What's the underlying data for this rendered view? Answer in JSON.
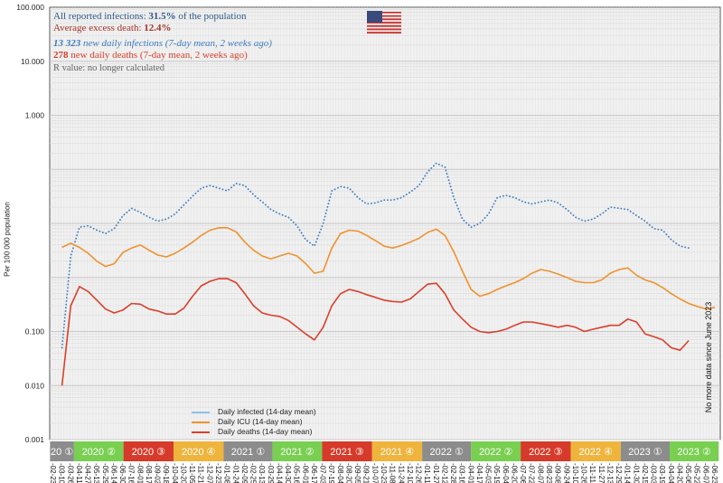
{
  "annotations": {
    "infections_prefix": "All reported infections: ",
    "infections_value": "31.5%",
    "infections_suffix": " of the population",
    "excess_prefix": "Average excess death: ",
    "excess_value": "12.4%",
    "daily_infections_value": "13 323",
    "daily_infections_suffix": " new daily infections (7-day mean, 2 weeks ago)",
    "daily_deaths_value": "278",
    "daily_deaths_suffix": " new daily deaths (7-day mean, 2 weeks ago)",
    "r_value": "R value: no longer calculated",
    "no_more_data": "No more data since June 2023"
  },
  "colors": {
    "infected": "#3d7cc0",
    "icu": "#f0922e",
    "deaths": "#d9402b",
    "q1": "#8c8c8c",
    "q2": "#78cf50",
    "q3": "#d63a2a",
    "q4": "#eeb43c",
    "plot_bg": "#f1f1f1",
    "infections_text": "#2e5a8a",
    "excess_text": "#a8352a",
    "daily_inf_text": "#3d7cc0",
    "daily_death_text": "#d9402b",
    "r_text": "#666666"
  },
  "flag_icon": "us-flag-icon",
  "chart_data": {
    "type": "line",
    "ylabel": "Per 100 000 population",
    "y_scale": "log",
    "ylim": [
      0.001,
      100000
    ],
    "y_ticks": [
      "100.000",
      "10.000",
      "1.000",
      "0.100",
      "0.010",
      "0.001"
    ],
    "y_tick_values": [
      100000,
      10000,
      1000,
      0.1,
      0.01,
      0.001
    ],
    "grid": true,
    "legend_position": "bottom-left",
    "x": [
      "2020-02-23",
      "2020-03-10",
      "2020-03-26",
      "2020-04-11",
      "2020-04-27",
      "2020-05-13",
      "2020-05-29",
      "2020-06-14",
      "2020-06-30",
      "2020-07-16",
      "2020-08-01",
      "2020-08-17",
      "2020-09-02",
      "2020-09-18",
      "2020-10-04",
      "2020-10-20",
      "2020-11-05",
      "2020-11-21",
      "2020-12-07",
      "2020-12-23",
      "2021-01-08",
      "2021-01-24",
      "2021-02-09",
      "2021-02-25",
      "2021-03-13",
      "2021-03-29",
      "2021-04-14",
      "2021-04-30",
      "2021-05-16",
      "2021-06-01",
      "2021-06-17",
      "2021-07-03",
      "2021-07-19",
      "2021-08-04",
      "2021-08-20",
      "2021-09-05",
      "2021-09-21",
      "2021-10-07",
      "2021-10-23",
      "2021-11-08",
      "2021-11-24",
      "2021-12-10",
      "2021-12-26",
      "2022-01-11",
      "2022-01-27",
      "2022-02-12",
      "2022-02-28",
      "2022-03-16",
      "2022-04-01",
      "2022-04-17",
      "2022-05-03",
      "2022-05-19",
      "2022-06-04",
      "2022-06-20",
      "2022-07-06",
      "2022-07-22",
      "2022-08-07",
      "2022-08-23",
      "2022-09-08",
      "2022-09-24",
      "2022-10-10",
      "2022-10-26",
      "2022-11-11",
      "2022-11-27",
      "2022-12-13",
      "2022-12-29",
      "2023-01-14",
      "2023-01-30",
      "2023-02-15",
      "2023-03-03",
      "2023-03-19",
      "2023-04-04",
      "2023-04-20",
      "2023-05-06",
      "2023-05-22",
      "2023-06-07",
      "2023-06-23"
    ],
    "x_tick_labels": [
      "02-23",
      "03-10",
      "03-26",
      "04-11",
      "04-27",
      "05-13",
      "05-29",
      "06-14",
      "06-30",
      "07-16",
      "08-01",
      "08-17",
      "09-02",
      "09-18",
      "10-04",
      "10-20",
      "11-05",
      "11-21",
      "12-07",
      "12-23",
      "01-08",
      "01-24",
      "02-09",
      "02-25",
      "03-13",
      "03-29",
      "04-14",
      "04-30",
      "05-16",
      "06-01",
      "06-17",
      "07-03",
      "07-19",
      "08-04",
      "08-20",
      "09-05",
      "09-21",
      "10-07",
      "10-23",
      "11-08",
      "11-24",
      "12-10",
      "12-26",
      "01-11",
      "01-27",
      "02-12",
      "02-28",
      "03-16",
      "04-01",
      "04-17",
      "05-03",
      "05-19",
      "06-04",
      "06-20",
      "07-06",
      "07-22",
      "08-07",
      "08-23",
      "09-08",
      "09-24",
      "10-10",
      "10-26",
      "11-11",
      "11-27",
      "12-13",
      "12-29",
      "01-14",
      "01-30",
      "02-15",
      "03-03",
      "03-19",
      "04-04",
      "04-20",
      "05-06",
      "05-22",
      "06-07",
      "06-23"
    ],
    "quarters": [
      {
        "label": "20 ①",
        "q": 1,
        "start": "2020-02-17",
        "end": "2020-04-01"
      },
      {
        "label": "2020 ②",
        "q": 2,
        "start": "2020-04-01",
        "end": "2020-07-01"
      },
      {
        "label": "2020 ③",
        "q": 3,
        "start": "2020-07-01",
        "end": "2020-10-01"
      },
      {
        "label": "2020 ④",
        "q": 4,
        "start": "2020-10-01",
        "end": "2021-01-01"
      },
      {
        "label": "2021 ①",
        "q": 1,
        "start": "2021-01-01",
        "end": "2021-04-01"
      },
      {
        "label": "2021 ②",
        "q": 2,
        "start": "2021-04-01",
        "end": "2021-07-01"
      },
      {
        "label": "2021 ③",
        "q": 3,
        "start": "2021-07-01",
        "end": "2021-10-01"
      },
      {
        "label": "2021 ④",
        "q": 4,
        "start": "2021-10-01",
        "end": "2022-01-01"
      },
      {
        "label": "2022 ①",
        "q": 1,
        "start": "2022-01-01",
        "end": "2022-04-01"
      },
      {
        "label": "2022 ②",
        "q": 2,
        "start": "2022-04-01",
        "end": "2022-07-01"
      },
      {
        "label": "2022 ③",
        "q": 3,
        "start": "2022-07-01",
        "end": "2022-10-01"
      },
      {
        "label": "2022 ④",
        "q": 4,
        "start": "2022-10-01",
        "end": "2023-01-01"
      },
      {
        "label": "2023 ①",
        "q": 1,
        "start": "2023-01-01",
        "end": "2023-04-01"
      },
      {
        "label": "2023 ②",
        "q": 2,
        "start": "2023-04-01",
        "end": "2023-06-30"
      }
    ],
    "series": [
      {
        "name": "Daily infected (14-day mean)",
        "key": "infected",
        "style": "dotted",
        "values": [
          null,
          0.05,
          2.5,
          8.5,
          9,
          7.5,
          6.5,
          8,
          14,
          19,
          16,
          13,
          11,
          12,
          15,
          22,
          32,
          45,
          50,
          45,
          40,
          55,
          50,
          34,
          25,
          18,
          15,
          13,
          9,
          5,
          3.8,
          10,
          40,
          48,
          45,
          30,
          23,
          24,
          27,
          27,
          30,
          38,
          50,
          90,
          130,
          110,
          30,
          12,
          8.5,
          10,
          15,
          30,
          33,
          30,
          25,
          23,
          25,
          27,
          24,
          18,
          13,
          11,
          12,
          15,
          20,
          19,
          18,
          14,
          11,
          8,
          7.5,
          5,
          3.8,
          3.5,
          null,
          null,
          null
        ]
      },
      {
        "name": "Daily ICU (14-day mean)",
        "key": "icu",
        "style": "solid",
        "values": [
          null,
          3.6,
          4.3,
          3.6,
          2.8,
          2.0,
          1.6,
          1.8,
          2.9,
          3.5,
          4.0,
          3.2,
          2.6,
          2.4,
          2.8,
          3.5,
          4.5,
          6.0,
          7.5,
          8.3,
          8.3,
          7.0,
          4.5,
          3.2,
          2.5,
          2.2,
          2.5,
          2.8,
          2.5,
          1.8,
          1.2,
          1.3,
          3.5,
          6.5,
          7.5,
          7.2,
          6.0,
          4.8,
          3.8,
          3.5,
          3.9,
          4.5,
          5.3,
          6.8,
          7.8,
          6.0,
          3.0,
          1.3,
          0.6,
          0.45,
          0.5,
          0.6,
          0.7,
          0.8,
          0.95,
          1.2,
          1.4,
          1.3,
          1.15,
          1.0,
          0.85,
          0.8,
          0.8,
          0.9,
          1.2,
          1.4,
          1.5,
          1.1,
          0.9,
          0.8,
          0.65,
          0.5,
          0.4,
          0.33,
          0.29,
          0.26,
          0.28
        ]
      },
      {
        "name": "Daily deaths (14-day mean)",
        "key": "deaths",
        "style": "solid",
        "values": [
          null,
          0.01,
          0.3,
          0.68,
          0.55,
          0.38,
          0.26,
          0.22,
          0.25,
          0.33,
          0.32,
          0.26,
          0.24,
          0.21,
          0.21,
          0.27,
          0.45,
          0.7,
          0.85,
          0.95,
          0.95,
          0.8,
          0.5,
          0.3,
          0.22,
          0.2,
          0.19,
          0.16,
          0.12,
          0.09,
          0.07,
          0.12,
          0.3,
          0.5,
          0.6,
          0.55,
          0.48,
          0.43,
          0.38,
          0.36,
          0.35,
          0.4,
          0.55,
          0.75,
          0.78,
          0.5,
          0.25,
          0.17,
          0.12,
          0.1,
          0.095,
          0.1,
          0.11,
          0.13,
          0.15,
          0.15,
          0.14,
          0.13,
          0.12,
          0.13,
          0.12,
          0.1,
          0.11,
          0.12,
          0.13,
          0.13,
          0.17,
          0.15,
          0.09,
          0.08,
          0.07,
          0.05,
          0.045,
          0.068,
          null,
          null,
          null
        ]
      }
    ]
  }
}
